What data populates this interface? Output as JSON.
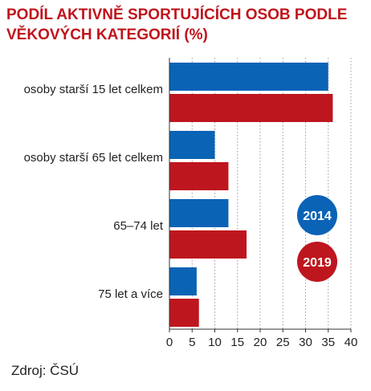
{
  "chart_data": {
    "type": "bar",
    "orientation": "horizontal",
    "title_lines": [
      "PODÍL AKTIVNĚ SPORTUJÍCÍCH OSOB PODLE",
      "VĚKOVÝCH KATEGORIÍ (%)"
    ],
    "categories": [
      "osoby starší 15 let celkem",
      "osoby starší 65 let celkem",
      "65–74 let",
      "75 let a více"
    ],
    "series": [
      {
        "name": "2014",
        "color": "#0b63b6",
        "values": [
          35,
          10,
          13,
          6
        ]
      },
      {
        "name": "2019",
        "color": "#be161e",
        "values": [
          36,
          13,
          17,
          6.5
        ]
      }
    ],
    "xlim": [
      0,
      40
    ],
    "xticks": [
      "0",
      "5",
      "10",
      "15",
      "20",
      "25",
      "30",
      "35",
      "40"
    ],
    "grid": true,
    "legend": "right, circular badges"
  },
  "source": "Zdroj: ČSÚ"
}
